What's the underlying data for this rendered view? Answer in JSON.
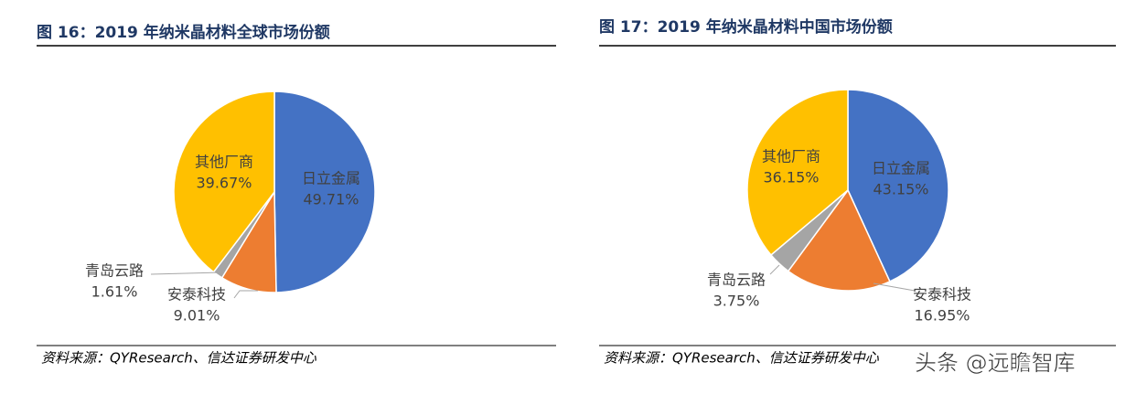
{
  "chart_data": [
    {
      "type": "pie",
      "title": "图 16：2019 年纳米晶材料全球市场份额",
      "categories": [
        "日立金属",
        "安泰科技",
        "青岛云路",
        "其他厂商"
      ],
      "values": [
        49.71,
        9.01,
        1.61,
        39.67
      ],
      "value_labels": [
        "49.71%",
        "9.01%",
        "1.61%",
        "39.67%"
      ],
      "colors": [
        "#4472c4",
        "#ed7d31",
        "#a5a5a5",
        "#ffc000"
      ],
      "source": "资料来源：QYResearch、信达证券研发中心"
    },
    {
      "type": "pie",
      "title": "图 17：2019 年纳米晶材料中国市场份额",
      "categories": [
        "日立金属",
        "安泰科技",
        "青岛云路",
        "其他厂商"
      ],
      "values": [
        43.15,
        16.95,
        3.75,
        36.15
      ],
      "value_labels": [
        "43.15%",
        "16.95%",
        "3.75%",
        "36.15%"
      ],
      "colors": [
        "#4472c4",
        "#ed7d31",
        "#a5a5a5",
        "#ffc000"
      ],
      "source": "资料来源：QYResearch、信达证券研发中心"
    }
  ],
  "watermark": "头条 @远瞻智库"
}
